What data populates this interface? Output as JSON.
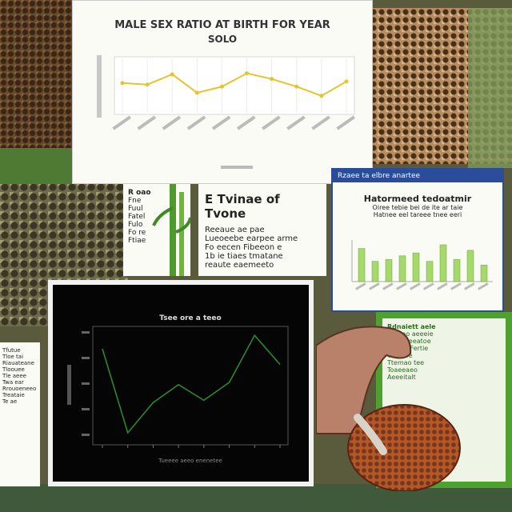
{
  "top_chart": {
    "title_line1": "MALE SEX RATIO AT BIRTH FOR YEAR",
    "title_line2": "SOLO",
    "series_color": "#e3c431",
    "values": [
      0.55,
      0.52,
      0.72,
      0.36,
      0.48,
      0.74,
      0.63,
      0.48,
      0.3,
      0.58
    ]
  },
  "doc_middle": {
    "heading": "E Tvinae of Tvone",
    "lines": [
      "Reeaue ae pae",
      "Lueoeebe earpee arme",
      "Fo eecen Fibeeon e",
      "1b ie tiaes tmatane",
      "reaute eaemeeto"
    ]
  },
  "doc_small": {
    "lines": [
      "R oao",
      "Fne",
      "Fuul",
      "Fatel",
      "Fulo",
      "Fo re",
      "Ftiae"
    ]
  },
  "bar_card": {
    "banner": "Rzaee ta elbre anartee",
    "heading": "Hatormeed tedoatmir",
    "sub1": "Oiree tebie bei de ite ar taie",
    "sub2": "Hatnee eel tareee tnee eeri",
    "bar_color": "#a6d86a",
    "values": [
      0.9,
      0.55,
      0.6,
      0.7,
      0.78,
      0.55,
      1.0,
      0.6,
      0.85,
      0.45
    ]
  },
  "dark_chart": {
    "title": "Tsee ore a teeo",
    "xlabel": "Tueeee aeeo enenetee",
    "line_color": "#2c8f2c",
    "values": [
      0.8,
      0.05,
      0.32,
      0.48,
      0.34,
      0.5,
      0.92,
      0.66
    ]
  },
  "left_doc": {
    "lines": [
      "Tfutue",
      "Tloe tai",
      "Riauateane",
      "Tloouee",
      "Tle aeee",
      "Twa ear",
      "Rrouoeneeo",
      "Treataie",
      "Te ae"
    ]
  },
  "green_card": {
    "lines": [
      "Rdnaiett aele",
      "Atnaao aeeeie",
      "Turie Reeatoe",
      "Aatleit Fertie",
      "Treaeoe",
      "Ttemao tee",
      "Toaeeaeo",
      "Aeeeitalt"
    ]
  }
}
